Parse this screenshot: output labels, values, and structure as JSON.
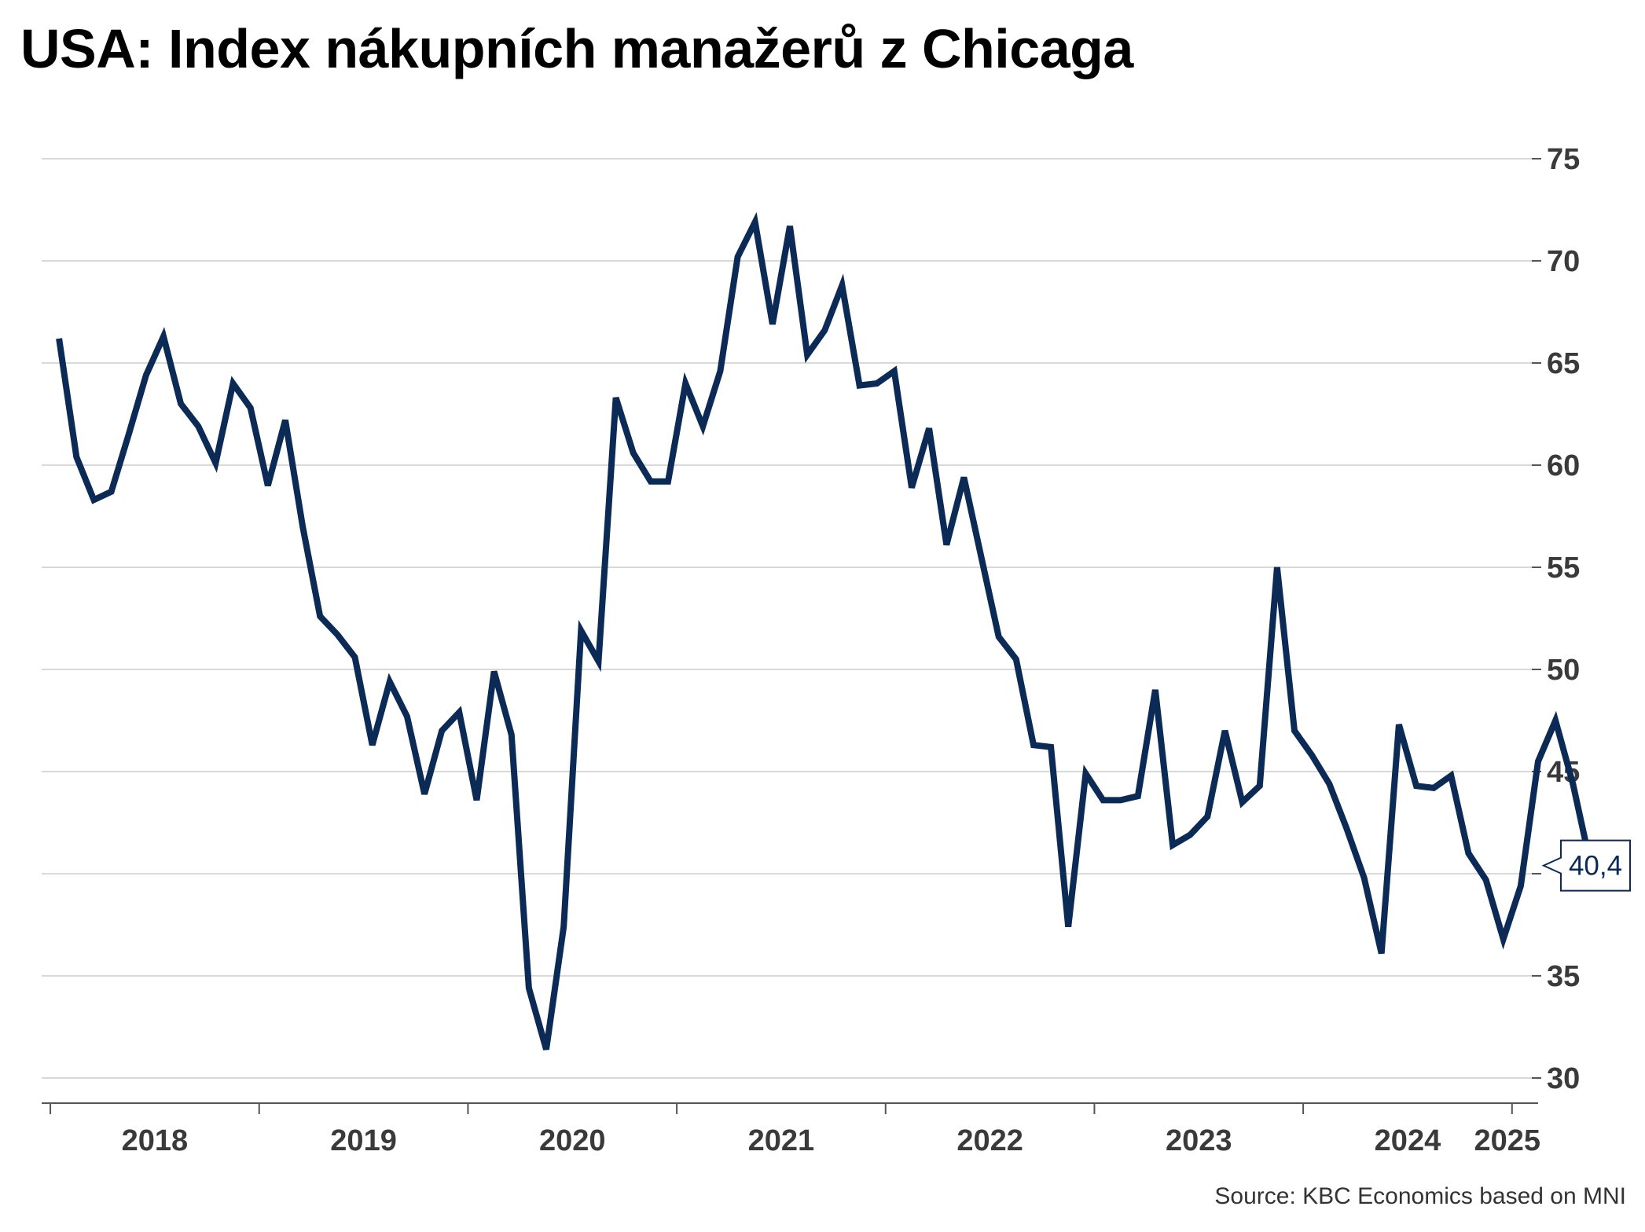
{
  "title": "USA: Index nákupních manažerů z Chicaga",
  "source": "Source: KBC Economics based on MNI",
  "colors": {
    "line": "#0b2a55",
    "grid": "#d9d9d9",
    "axis": "#555555",
    "text": "#3a3a3a"
  },
  "chart_data": {
    "type": "line",
    "title": "USA: Index nákupních manažerů z Chicaga",
    "xlabel": "",
    "ylabel": "",
    "x_start": "2018-01",
    "x_range": [
      "2017-12",
      "2025-02"
    ],
    "ylim": [
      30,
      75
    ],
    "yticks": [
      30,
      35,
      40,
      45,
      50,
      55,
      60,
      65,
      70,
      75
    ],
    "ytick_labels": [
      "30",
      "35",
      "",
      "45",
      "50",
      "55",
      "60",
      "65",
      "70",
      "75"
    ],
    "xtick_labels": [
      "2018",
      "2019",
      "2020",
      "2021",
      "2022",
      "2023",
      "2024",
      "2025"
    ],
    "grid": true,
    "y_axis_position": "right",
    "last_value_label": "40,4",
    "series": [
      {
        "values": [
          66.2,
          60.4,
          58.3,
          58.7,
          61.5,
          64.4,
          66.3,
          63.0,
          61.9,
          60.1,
          64.0,
          62.8,
          59.0,
          62.2,
          57.0,
          52.6,
          51.7,
          50.6,
          46.3,
          49.4,
          47.7,
          43.9,
          47.0,
          47.9,
          43.6,
          49.9,
          46.8,
          34.4,
          31.4,
          37.4,
          51.9,
          50.4,
          63.3,
          60.6,
          59.2,
          59.2,
          64.0,
          61.9,
          64.6,
          70.2,
          71.9,
          66.9,
          71.7,
          65.4,
          66.6,
          68.8,
          63.9,
          64.0,
          64.6,
          58.9,
          61.8,
          56.1,
          59.4,
          55.5,
          51.6,
          50.5,
          46.3,
          46.2,
          37.4,
          44.9,
          43.6,
          43.6,
          43.8,
          49.0,
          41.4,
          41.9,
          42.8,
          47.0,
          43.5,
          44.3,
          55.0,
          47.0,
          45.8,
          44.4,
          42.2,
          39.8,
          36.1,
          47.3,
          44.3,
          44.2,
          44.8,
          41.0,
          39.7,
          36.8,
          39.4,
          45.5,
          47.5,
          44.4,
          40.5,
          40.4
        ]
      }
    ]
  }
}
